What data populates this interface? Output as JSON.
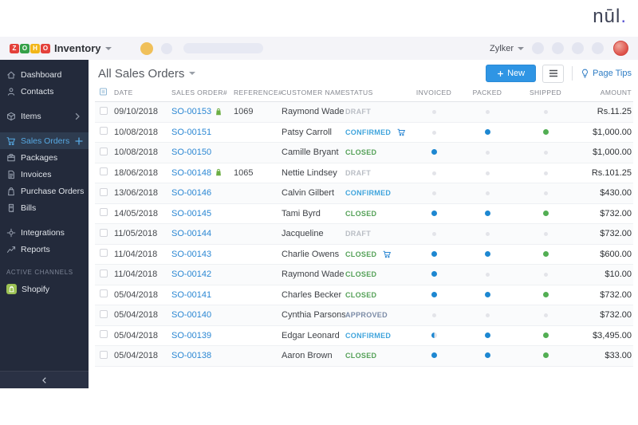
{
  "brand": {
    "logo_text": "nūl",
    "logo_dot": ".",
    "logo_color": "#3e4356",
    "dot_color": "#5a55d2"
  },
  "topbar": {
    "logo_letters": [
      "Z",
      "O",
      "H",
      "O"
    ],
    "logo_colors": [
      "#e4413b",
      "#35a048",
      "#f2b618",
      "#e4413b"
    ],
    "product": "Inventory",
    "org_name": "Zylker"
  },
  "sidebar": {
    "items": [
      {
        "label": "Dashboard",
        "icon": "dashboard-icon"
      },
      {
        "label": "Contacts",
        "icon": "contacts-icon"
      },
      {
        "label": "Items",
        "icon": "items-icon",
        "chevron": true,
        "gap": true
      },
      {
        "label": "Sales Orders",
        "icon": "sales-orders-icon",
        "active": true,
        "plus": true,
        "gap": true
      },
      {
        "label": "Packages",
        "icon": "packages-icon"
      },
      {
        "label": "Invoices",
        "icon": "invoices-icon"
      },
      {
        "label": "Purchase Orders",
        "icon": "purchase-orders-icon"
      },
      {
        "label": "Bills",
        "icon": "bills-icon"
      },
      {
        "label": "Integrations",
        "icon": "integrations-icon",
        "gap": true
      },
      {
        "label": "Reports",
        "icon": "reports-icon"
      }
    ],
    "section_label": "ACTIVE CHANNELS",
    "channels": [
      {
        "label": "Shopify",
        "icon": "shopify-icon"
      }
    ]
  },
  "page": {
    "title": "All Sales Orders",
    "new_label": "New",
    "page_tips_label": "Page Tips"
  },
  "table": {
    "headers": [
      "DATE",
      "SALES ORDER#",
      "REFERENCE#",
      "CUSTOMER NAME",
      "STATUS",
      "INVOICED",
      "PACKED",
      "SHIPPED",
      "AMOUNT"
    ],
    "status_colors": {
      "draft": "#b9bdc4",
      "confirmed": "#3fa4dc",
      "closed": "#55a158",
      "approved": "#7b8ba6"
    },
    "dot_colors": {
      "blue": "#1d87d1",
      "green": "#52ae53",
      "empty": "#e3e4e9"
    },
    "rows": [
      {
        "date": "09/10/2018",
        "order_no": "SO-00153",
        "channel": "shopify",
        "reference": "1069",
        "customer": "Raymond Wade",
        "status": "DRAFT",
        "status_key": "draft",
        "backorder": false,
        "invoiced": "none",
        "packed": "none",
        "shipped": "none",
        "amount": "Rs.11.25"
      },
      {
        "date": "10/08/2018",
        "order_no": "SO-00151",
        "channel": null,
        "reference": "",
        "customer": "Patsy Carroll",
        "status": "CONFIRMED",
        "status_key": "confirmed",
        "backorder": true,
        "invoiced": "none",
        "packed": "full",
        "shipped": "full",
        "amount": "$1,000.00"
      },
      {
        "date": "10/08/2018",
        "order_no": "SO-00150",
        "channel": null,
        "reference": "",
        "customer": "Camille Bryant",
        "status": "CLOSED",
        "status_key": "closed",
        "backorder": false,
        "invoiced": "full",
        "packed": "none",
        "shipped": "none",
        "amount": "$1,000.00"
      },
      {
        "date": "18/06/2018",
        "order_no": "SO-00148",
        "channel": "shopify",
        "reference": "1065",
        "customer": "Nettie Lindsey",
        "status": "DRAFT",
        "status_key": "draft",
        "backorder": false,
        "invoiced": "none",
        "packed": "none",
        "shipped": "none",
        "amount": "Rs.101.25"
      },
      {
        "date": "13/06/2018",
        "order_no": "SO-00146",
        "channel": null,
        "reference": "",
        "customer": "Calvin Gilbert",
        "status": "CONFIRMED",
        "status_key": "confirmed",
        "backorder": false,
        "invoiced": "none",
        "packed": "none",
        "shipped": "none",
        "amount": "$430.00"
      },
      {
        "date": "14/05/2018",
        "order_no": "SO-00145",
        "channel": null,
        "reference": "",
        "customer": "Tami Byrd",
        "status": "CLOSED",
        "status_key": "closed",
        "backorder": false,
        "invoiced": "full",
        "packed": "full",
        "shipped": "full",
        "amount": "$732.00"
      },
      {
        "date": "11/05/2018",
        "order_no": "SO-00144",
        "channel": null,
        "reference": "",
        "customer": "Jacqueline",
        "status": "DRAFT",
        "status_key": "draft",
        "backorder": false,
        "invoiced": "none",
        "packed": "none",
        "shipped": "none",
        "amount": "$732.00"
      },
      {
        "date": "11/04/2018",
        "order_no": "SO-00143",
        "channel": null,
        "reference": "",
        "customer": "Charlie Owens",
        "status": "CLOSED",
        "status_key": "closed",
        "backorder": true,
        "invoiced": "full",
        "packed": "full",
        "shipped": "full",
        "amount": "$600.00"
      },
      {
        "date": "11/04/2018",
        "order_no": "SO-00142",
        "channel": null,
        "reference": "",
        "customer": "Raymond Wade",
        "status": "CLOSED",
        "status_key": "closed",
        "backorder": false,
        "invoiced": "full",
        "packed": "none",
        "shipped": "none",
        "amount": "$10.00"
      },
      {
        "date": "05/04/2018",
        "order_no": "SO-00141",
        "channel": null,
        "reference": "",
        "customer": "Charles Becker",
        "status": "CLOSED",
        "status_key": "closed",
        "backorder": false,
        "invoiced": "full",
        "packed": "full",
        "shipped": "full",
        "amount": "$732.00"
      },
      {
        "date": "05/04/2018",
        "order_no": "SO-00140",
        "channel": null,
        "reference": "",
        "customer": "Cynthia Parsons",
        "status": "APPROVED",
        "status_key": "approved",
        "backorder": false,
        "invoiced": "none",
        "packed": "none",
        "shipped": "none",
        "amount": "$732.00"
      },
      {
        "date": "05/04/2018",
        "order_no": "SO-00139",
        "channel": null,
        "reference": "",
        "customer": "Edgar Leonard",
        "status": "CONFIRMED",
        "status_key": "confirmed",
        "backorder": false,
        "invoiced": "half",
        "packed": "full",
        "shipped": "full",
        "amount": "$3,495.00"
      },
      {
        "date": "05/04/2018",
        "order_no": "SO-00138",
        "channel": null,
        "reference": "",
        "customer": "Aaron Brown",
        "status": "CLOSED",
        "status_key": "closed",
        "backorder": false,
        "invoiced": "full",
        "packed": "full",
        "shipped": "full",
        "amount": "$33.00"
      }
    ]
  }
}
